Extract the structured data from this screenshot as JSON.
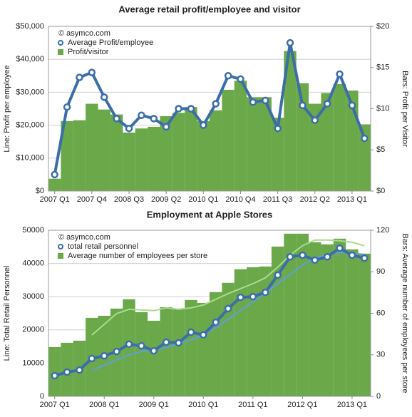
{
  "chart_data": [
    {
      "type": "combo",
      "title": "Average retail profit/employee and visitor",
      "annotation": "© asymco.com",
      "y_label": "Line: Profit per employee",
      "y2_label": "Bars: Profit per Visitor",
      "categories": [
        "2007 Q1",
        null,
        null,
        "2007 Q4",
        null,
        null,
        "2008 Q3",
        null,
        null,
        "2009 Q2",
        null,
        null,
        "2010 Q1",
        null,
        null,
        "2010 Q4",
        null,
        null,
        "2011 Q3",
        null,
        null,
        "2012 Q2",
        null,
        null,
        "2013 Q1",
        null
      ],
      "ylim": [
        0,
        50000
      ],
      "yticks": [
        {
          "value": 0,
          "label": "$0"
        },
        {
          "value": 10000,
          "label": "$10,000"
        },
        {
          "value": 20000,
          "label": "$20,000"
        },
        {
          "value": 30000,
          "label": "$30,000"
        },
        {
          "value": 40000,
          "label": "$40,000"
        },
        {
          "value": 50000,
          "label": "$50,000"
        }
      ],
      "y2lim": [
        0,
        20
      ],
      "y2ticks": [
        {
          "value": 0,
          "label": "$0"
        },
        {
          "value": 5,
          "label": "$5"
        },
        {
          "value": 10,
          "label": "$10"
        },
        {
          "value": 15,
          "label": "$15"
        },
        {
          "value": 20,
          "label": "$20"
        }
      ],
      "grid": true,
      "legend": "top-left",
      "series": [
        {
          "name": "Average Profit/employee",
          "type": "line",
          "markers": true,
          "color": "#3b6ea8",
          "values": [
            5000,
            25500,
            34500,
            36000,
            28500,
            22000,
            19000,
            23000,
            22000,
            19500,
            25000,
            25000,
            20000,
            26500,
            35000,
            34000,
            27000,
            27500,
            19000,
            45000,
            26000,
            21500,
            26500,
            35500,
            26000,
            16000
          ]
        },
        {
          "name": "Profit/visitor",
          "type": "bar",
          "axis": "y2",
          "color": "#6aa84a",
          "values": [
            1.5,
            8.5,
            8.6,
            10.6,
            9.9,
            9.3,
            7.1,
            7.6,
            7.8,
            9.1,
            9.5,
            10.2,
            8.5,
            9.8,
            12.3,
            13.4,
            11.4,
            11.4,
            8.9,
            17.0,
            13.1,
            10.6,
            11.9,
            13.0,
            12.2,
            8.1
          ]
        }
      ]
    },
    {
      "type": "combo",
      "title": "Employment at Apple Stores",
      "annotation": "© asymco.com",
      "y_label": "Line: Total Retail Personnel",
      "y2_label": "Bars: Average number of employees per store",
      "categories": [
        "2007 Q1",
        null,
        null,
        null,
        "2008 Q1",
        null,
        null,
        null,
        "2009 Q1",
        null,
        null,
        null,
        "2010 Q1",
        null,
        null,
        null,
        "2011 Q1",
        null,
        null,
        null,
        "2012 Q1",
        null,
        null,
        null,
        "2013 Q1",
        null
      ],
      "ylim": [
        0,
        50000
      ],
      "yticks": [
        0,
        10000,
        20000,
        30000,
        40000,
        50000
      ],
      "y2lim": [
        0,
        120
      ],
      "y2ticks": [
        0,
        30,
        60,
        90,
        120
      ],
      "grid": true,
      "legend": "top-left",
      "series": [
        {
          "name": "total retail personnel",
          "type": "line",
          "markers": true,
          "color": "#3b6ea8",
          "values": [
            6200,
            7300,
            7900,
            11400,
            12200,
            13500,
            15700,
            15200,
            13700,
            16300,
            16100,
            19300,
            18500,
            22300,
            26400,
            29800,
            30000,
            31300,
            36500,
            42000,
            42500,
            41000,
            42000,
            44600,
            42500,
            41600
          ]
        },
        {
          "name": "Average number of employees per store",
          "type": "bar",
          "axis": "y2",
          "color": "#6aa84a",
          "values": [
            35.6,
            38.7,
            40.2,
            56.7,
            58.2,
            63.4,
            70.1,
            60.8,
            54.6,
            64.4,
            62.9,
            69.6,
            67.5,
            75.3,
            82.0,
            91.8,
            93.3,
            93.8,
            108.2,
            117.5,
            117.5,
            111.3,
            109.8,
            113.9,
            106.2,
            103.1
          ]
        },
        {
          "type": "line",
          "markers": false,
          "color": "#5f9fd8",
          "values": [
            null,
            null,
            null,
            7700,
            9400,
            10900,
            12400,
            13500,
            14200,
            14600,
            15900,
            17000,
            18500,
            20600,
            23200,
            25800,
            28500,
            30900,
            33900,
            36700,
            39500,
            41600,
            42700,
            43300,
            43100,
            42700
          ]
        },
        {
          "type": "line",
          "axis": "y2",
          "markers": false,
          "color": "#a9db8c",
          "values": [
            null,
            null,
            null,
            44.3,
            52.0,
            59.8,
            62.9,
            62.4,
            61.9,
            63.9,
            62.9,
            63.9,
            66.0,
            70.1,
            74.2,
            77.8,
            81.4,
            85.6,
            93.3,
            102.0,
            108.8,
            112.9,
            112.9,
            112.4,
            111.3,
            108.8
          ]
        }
      ]
    }
  ]
}
